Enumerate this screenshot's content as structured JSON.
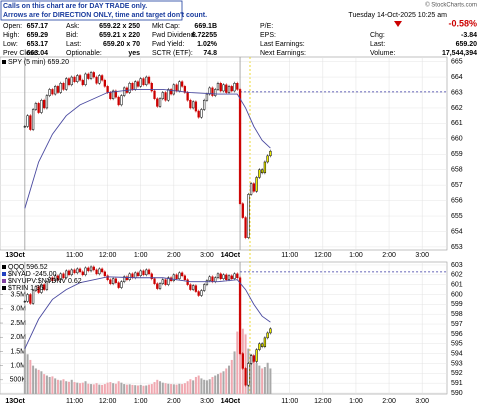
{
  "notice": [
    "Calls on this chart are for DAY TRADE only.",
    "Arrows are for DIRECTION ONLY, time and target don't count."
  ],
  "watermark": "© StockCharts.com",
  "datetime": "Tuesday  14-Oct-2025  10:25 am",
  "quote": {
    "rows": [
      [
        {
          "label": "Open:",
          "value": "657.17"
        },
        {
          "label": "Ask:",
          "value": "659.22 x 250"
        },
        {
          "label": "Mkt Cap:",
          "value": "669.1B"
        },
        {
          "label": "P/E:"
        }
      ],
      [
        {
          "label": "High:",
          "value": "659.29"
        },
        {
          "label": "Bid:",
          "value": "659.21 x 220"
        },
        {
          "label": "Fwd Dividend:",
          "value": "6.72255"
        },
        {
          "label": "EPS:"
        }
      ],
      [
        {
          "label": "Low:",
          "value": "653.17"
        },
        {
          "label": "Last:",
          "value": "659.20 x 70"
        },
        {
          "label": "Fwd Yield:",
          "value": "1.02%"
        },
        {
          "label": "Last Earnings:"
        }
      ],
      [
        {
          "label": "Prev Close:",
          "value": "663.04"
        },
        {
          "label": "Optionable:",
          "value": "yes"
        },
        {
          "label": "SCTR (ETF):",
          "value": "74.8"
        },
        {
          "label": "Next Earnings:"
        }
      ]
    ]
  },
  "summary": {
    "change_pct": "-0.58%",
    "rows": [
      {
        "label": "Chg:",
        "value": "-3.84"
      },
      {
        "label": "Last:",
        "value": "659.20"
      },
      {
        "label": "Volume:",
        "value": "17,544,394"
      }
    ]
  },
  "chart_data": [
    {
      "type": "candlestick",
      "legend": [
        {
          "text": "SPY (5 min) 659.20",
          "color": "#000000"
        }
      ],
      "xlim": [
        -9,
        153
      ],
      "xticks": [
        {
          "value": 0,
          "label": "13Oct"
        },
        {
          "value": 18,
          "label": "11:00"
        },
        {
          "value": 30,
          "label": "12:00"
        },
        {
          "value": 42,
          "label": "1:00"
        },
        {
          "value": 54,
          "label": "2:00"
        },
        {
          "value": 66,
          "label": "3:00"
        },
        {
          "value": 78,
          "label": "14Oct"
        },
        {
          "value": 96,
          "label": "11:00"
        },
        {
          "value": 108,
          "label": "12:00"
        },
        {
          "value": 120,
          "label": "1:00"
        },
        {
          "value": 132,
          "label": "2:00"
        },
        {
          "value": 144,
          "label": "3:00"
        }
      ],
      "ylim": [
        652.8,
        665.3
      ],
      "yticks": [
        653,
        654,
        655,
        656,
        657,
        658,
        659,
        660,
        661,
        662,
        663,
        664,
        665
      ],
      "ref_line": 663.04,
      "grid": true,
      "highlight": {
        "from": 84,
        "color": "#f0f000"
      },
      "series": [
        {
          "name": "SPY",
          "style": "candles",
          "up_color": "#000000",
          "down_color": "#cc0000",
          "x": [
            0,
            1,
            2,
            3,
            4,
            5,
            6,
            7,
            8,
            9,
            10,
            11,
            12,
            13,
            14,
            15,
            16,
            17,
            18,
            19,
            20,
            21,
            22,
            23,
            24,
            25,
            26,
            27,
            28,
            29,
            30,
            31,
            32,
            33,
            34,
            35,
            36,
            37,
            38,
            39,
            40,
            41,
            42,
            43,
            44,
            45,
            46,
            47,
            48,
            49,
            50,
            51,
            52,
            53,
            54,
            55,
            56,
            57,
            58,
            59,
            60,
            61,
            62,
            63,
            64,
            65,
            66,
            67,
            68,
            69,
            70,
            71,
            72,
            73,
            74,
            75,
            76,
            77,
            78,
            79,
            80,
            81,
            82,
            83,
            84,
            85,
            86,
            87,
            88,
            89
          ],
          "values": [
            660.8,
            661.5,
            660.6,
            661.9,
            662.3,
            661.7,
            662.5,
            662.0,
            662.8,
            663.2,
            662.9,
            663.4,
            663.0,
            663.6,
            663.2,
            663.9,
            663.5,
            664.0,
            663.7,
            664.1,
            663.8,
            663.5,
            664.2,
            663.9,
            664.3,
            664.0,
            663.6,
            664.1,
            663.8,
            663.4,
            663.0,
            662.6,
            663.1,
            662.7,
            662.2,
            662.8,
            663.3,
            663.0,
            663.6,
            663.2,
            663.7,
            663.4,
            663.9,
            663.5,
            664.0,
            663.6,
            663.1,
            662.6,
            662.1,
            662.6,
            663.0,
            662.5,
            663.2,
            662.9,
            663.5,
            663.1,
            663.7,
            663.4,
            663.0,
            662.5,
            662.0,
            662.4,
            661.8,
            661.4,
            661.9,
            662.5,
            662.9,
            663.3,
            662.8,
            663.2,
            663.6,
            663.1,
            663.5,
            663.0,
            663.4,
            663.1,
            663.6,
            663.2,
            655.8,
            654.9,
            653.6,
            656.4,
            657.1,
            656.6,
            657.5,
            658.0,
            657.8,
            658.5,
            658.9,
            659.2
          ]
        },
        {
          "name": "SPY MA",
          "style": "line",
          "color": "#4a4aa0",
          "x": [
            0,
            5,
            10,
            15,
            20,
            30,
            40,
            50,
            60,
            70,
            77,
            80,
            83,
            86,
            89
          ],
          "values": [
            655.5,
            658.5,
            660.3,
            661.5,
            662.2,
            663.0,
            663.2,
            663.2,
            663.0,
            662.9,
            662.9,
            662.0,
            660.8,
            659.9,
            659.4
          ]
        }
      ]
    },
    {
      "type": "candlestick",
      "legend": [
        {
          "text": "QQQ 596.52",
          "color": "#000000"
        },
        {
          "text": "$NYAD -245.00",
          "color": "#2040c0"
        },
        {
          "text": "$NYUPV:$NYDNV 0.62",
          "color": "#8040a0"
        },
        {
          "text": "$TRIN 1.35",
          "color": "#000000"
        }
      ],
      "xlim": [
        -9,
        153
      ],
      "xticks": [
        {
          "value": 0,
          "label": "13Oct"
        },
        {
          "value": 18,
          "label": "11:00"
        },
        {
          "value": 30,
          "label": "12:00"
        },
        {
          "value": 42,
          "label": "1:00"
        },
        {
          "value": 54,
          "label": "2:00"
        },
        {
          "value": 66,
          "label": "3:00"
        },
        {
          "value": 78,
          "label": "14Oct"
        },
        {
          "value": 96,
          "label": "11:00"
        },
        {
          "value": 108,
          "label": "12:00"
        },
        {
          "value": 120,
          "label": "1:00"
        },
        {
          "value": 132,
          "label": "2:00"
        },
        {
          "value": 144,
          "label": "3:00"
        }
      ],
      "ylim": [
        589.9,
        603.3
      ],
      "yticks": [
        590,
        591,
        592,
        593,
        594,
        595,
        596,
        597,
        598,
        599,
        600,
        601,
        602,
        603
      ],
      "y2lim": [
        0,
        4650000
      ],
      "y2ticks": [
        {
          "value": 500000,
          "label": "500K"
        },
        {
          "value": 1000000,
          "label": "1.0M"
        },
        {
          "value": 1500000,
          "label": "1.5M"
        },
        {
          "value": 2000000,
          "label": "2.0M"
        },
        {
          "value": 2500000,
          "label": "2.5M"
        },
        {
          "value": 3000000,
          "label": "3.0M"
        },
        {
          "value": 3500000,
          "label": "3.5M"
        }
      ],
      "ref_line": 602.3,
      "grid": true,
      "highlight": {
        "from": 84,
        "color": "#f0f000"
      },
      "series": [
        {
          "name": "Volume",
          "style": "bars",
          "axis": "y2",
          "up_color": "#a8a8a8",
          "down_color": "#f0a8b0",
          "x": [
            0,
            1,
            2,
            3,
            4,
            5,
            6,
            7,
            8,
            9,
            10,
            11,
            12,
            13,
            14,
            15,
            16,
            17,
            18,
            19,
            20,
            21,
            22,
            23,
            24,
            25,
            26,
            27,
            28,
            29,
            30,
            31,
            32,
            33,
            34,
            35,
            36,
            37,
            38,
            39,
            40,
            41,
            42,
            43,
            44,
            45,
            46,
            47,
            48,
            49,
            50,
            51,
            52,
            53,
            54,
            55,
            56,
            57,
            58,
            59,
            60,
            61,
            62,
            63,
            64,
            65,
            66,
            67,
            68,
            69,
            70,
            71,
            72,
            73,
            74,
            75,
            76,
            77,
            78,
            79,
            80,
            81,
            82,
            83,
            84,
            85,
            86,
            87,
            88,
            89
          ],
          "values": [
            1900000,
            1400000,
            1200000,
            1000000,
            900000,
            850000,
            800000,
            700000,
            650000,
            600000,
            620000,
            550000,
            500000,
            480000,
            520000,
            450000,
            430000,
            500000,
            420000,
            400000,
            380000,
            400000,
            450000,
            360000,
            350000,
            340000,
            380000,
            330000,
            320000,
            350000,
            400000,
            420000,
            380000,
            360000,
            450000,
            400000,
            350000,
            330000,
            340000,
            320000,
            310000,
            300000,
            320000,
            290000,
            300000,
            330000,
            350000,
            420000,
            500000,
            450000,
            400000,
            380000,
            360000,
            350000,
            340000,
            330000,
            360000,
            350000,
            380000,
            450000,
            520000,
            480000,
            600000,
            650000,
            550000,
            500000,
            480000,
            520000,
            600000,
            650000,
            700000,
            750000,
            800000,
            900000,
            1000000,
            1200000,
            1500000,
            2200000,
            2700000,
            2300000,
            2100000,
            1600000,
            1400000,
            1200000,
            1100000,
            1000000,
            900000,
            950000,
            1100000,
            900000
          ]
        },
        {
          "name": "QQQ",
          "style": "candles",
          "up_color": "#000000",
          "down_color": "#cc0000",
          "x": [
            0,
            1,
            2,
            3,
            4,
            5,
            6,
            7,
            8,
            9,
            10,
            11,
            12,
            13,
            14,
            15,
            16,
            17,
            18,
            19,
            20,
            21,
            22,
            23,
            24,
            25,
            26,
            27,
            28,
            29,
            30,
            31,
            32,
            33,
            34,
            35,
            36,
            37,
            38,
            39,
            40,
            41,
            42,
            43,
            44,
            45,
            46,
            47,
            48,
            49,
            50,
            51,
            52,
            53,
            54,
            55,
            56,
            57,
            58,
            59,
            60,
            61,
            62,
            63,
            64,
            65,
            66,
            67,
            68,
            69,
            70,
            71,
            72,
            73,
            74,
            75,
            76,
            77,
            78,
            79,
            80,
            81,
            82,
            83,
            84,
            85,
            86,
            87,
            88,
            89
          ],
          "values": [
            599.3,
            600.0,
            599.1,
            600.4,
            600.8,
            600.2,
            601.0,
            600.5,
            601.3,
            601.7,
            601.4,
            601.9,
            601.5,
            602.1,
            601.7,
            602.4,
            602.0,
            602.5,
            602.2,
            602.6,
            602.3,
            602.0,
            602.7,
            602.4,
            602.8,
            602.5,
            602.1,
            602.6,
            602.3,
            601.9,
            601.5,
            601.1,
            601.6,
            601.2,
            600.7,
            601.3,
            601.8,
            601.5,
            602.1,
            601.7,
            602.2,
            601.9,
            602.4,
            602.0,
            602.5,
            602.1,
            601.6,
            601.1,
            600.6,
            601.1,
            601.5,
            601.0,
            601.7,
            601.4,
            602.0,
            601.6,
            602.2,
            601.9,
            601.5,
            601.0,
            600.5,
            600.9,
            600.3,
            599.9,
            600.4,
            601.0,
            601.4,
            601.8,
            601.3,
            601.7,
            602.1,
            601.6,
            602.0,
            601.5,
            601.9,
            601.6,
            602.1,
            601.7,
            594.0,
            592.5,
            590.8,
            593.0,
            593.8,
            593.2,
            594.4,
            595.0,
            594.7,
            595.6,
            596.1,
            596.52
          ]
        },
        {
          "name": "QQQ MA",
          "style": "line",
          "color": "#4a4aa0",
          "x": [
            0,
            5,
            10,
            15,
            20,
            30,
            40,
            50,
            60,
            70,
            77,
            80,
            83,
            86,
            89
          ],
          "values": [
            594.5,
            597.5,
            599.5,
            600.5,
            601.2,
            601.8,
            601.7,
            601.7,
            601.3,
            601.3,
            601.5,
            600.5,
            599.0,
            597.8,
            597.2
          ]
        }
      ]
    }
  ]
}
